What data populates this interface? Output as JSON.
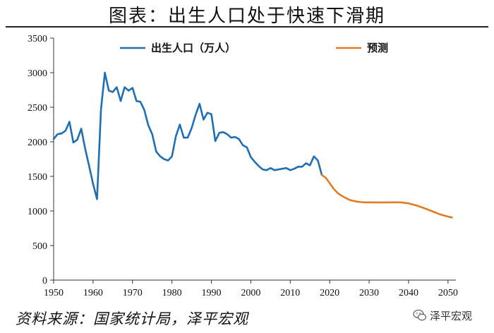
{
  "title": "图表：出生人口处于快速下滑期",
  "source": "资料来源：国家统计局，泽平宏观",
  "watermark": "泽平宏观",
  "chart_data": {
    "type": "line",
    "xlim": [
      1950,
      2052
    ],
    "ylim": [
      0,
      3500
    ],
    "xticks": [
      1950,
      1960,
      1970,
      1980,
      1990,
      2000,
      2010,
      2020,
      2030,
      2040,
      2050
    ],
    "yticks": [
      0,
      500,
      1000,
      1500,
      2000,
      2500,
      3000,
      3500
    ],
    "grid": false,
    "legend_position": "top",
    "series": [
      {
        "name": "出生人口（万人）",
        "color": "#1f6fb5",
        "points": [
          [
            1950,
            2040
          ],
          [
            1951,
            2110
          ],
          [
            1952,
            2120
          ],
          [
            1953,
            2160
          ],
          [
            1954,
            2290
          ],
          [
            1955,
            1990
          ],
          [
            1956,
            2030
          ],
          [
            1957,
            2190
          ],
          [
            1958,
            1900
          ],
          [
            1959,
            1650
          ],
          [
            1960,
            1390
          ],
          [
            1961,
            1170
          ],
          [
            1962,
            2470
          ],
          [
            1963,
            3000
          ],
          [
            1964,
            2740
          ],
          [
            1965,
            2720
          ],
          [
            1966,
            2790
          ],
          [
            1967,
            2590
          ],
          [
            1968,
            2790
          ],
          [
            1969,
            2740
          ],
          [
            1970,
            2780
          ],
          [
            1971,
            2590
          ],
          [
            1972,
            2580
          ],
          [
            1973,
            2460
          ],
          [
            1974,
            2240
          ],
          [
            1975,
            2110
          ],
          [
            1976,
            1860
          ],
          [
            1977,
            1790
          ],
          [
            1978,
            1750
          ],
          [
            1979,
            1730
          ],
          [
            1980,
            1790
          ],
          [
            1981,
            2080
          ],
          [
            1982,
            2250
          ],
          [
            1983,
            2060
          ],
          [
            1984,
            2060
          ],
          [
            1985,
            2200
          ],
          [
            1986,
            2390
          ],
          [
            1987,
            2550
          ],
          [
            1988,
            2320
          ],
          [
            1989,
            2420
          ],
          [
            1990,
            2400
          ],
          [
            1991,
            2010
          ],
          [
            1992,
            2130
          ],
          [
            1993,
            2140
          ],
          [
            1994,
            2110
          ],
          [
            1995,
            2060
          ],
          [
            1996,
            2070
          ],
          [
            1997,
            2040
          ],
          [
            1998,
            1950
          ],
          [
            1999,
            1920
          ],
          [
            2000,
            1780
          ],
          [
            2001,
            1710
          ],
          [
            2002,
            1650
          ],
          [
            2003,
            1600
          ],
          [
            2004,
            1590
          ],
          [
            2005,
            1620
          ],
          [
            2006,
            1590
          ],
          [
            2007,
            1600
          ],
          [
            2008,
            1610
          ],
          [
            2009,
            1620
          ],
          [
            2010,
            1590
          ],
          [
            2011,
            1610
          ],
          [
            2012,
            1640
          ],
          [
            2013,
            1640
          ],
          [
            2014,
            1690
          ],
          [
            2015,
            1660
          ],
          [
            2016,
            1790
          ],
          [
            2017,
            1730
          ],
          [
            2018,
            1520
          ]
        ]
      },
      {
        "name": "预测",
        "color": "#e07b22",
        "points": [
          [
            2018,
            1520
          ],
          [
            2019,
            1480
          ],
          [
            2020,
            1400
          ],
          [
            2021,
            1320
          ],
          [
            2022,
            1260
          ],
          [
            2023,
            1220
          ],
          [
            2024,
            1190
          ],
          [
            2025,
            1160
          ],
          [
            2026,
            1145
          ],
          [
            2027,
            1135
          ],
          [
            2028,
            1128
          ],
          [
            2029,
            1125
          ],
          [
            2030,
            1125
          ],
          [
            2032,
            1123
          ],
          [
            2034,
            1123
          ],
          [
            2036,
            1125
          ],
          [
            2038,
            1125
          ],
          [
            2040,
            1110
          ],
          [
            2042,
            1080
          ],
          [
            2044,
            1040
          ],
          [
            2046,
            995
          ],
          [
            2048,
            950
          ],
          [
            2050,
            918
          ],
          [
            2051,
            905
          ]
        ]
      }
    ]
  }
}
